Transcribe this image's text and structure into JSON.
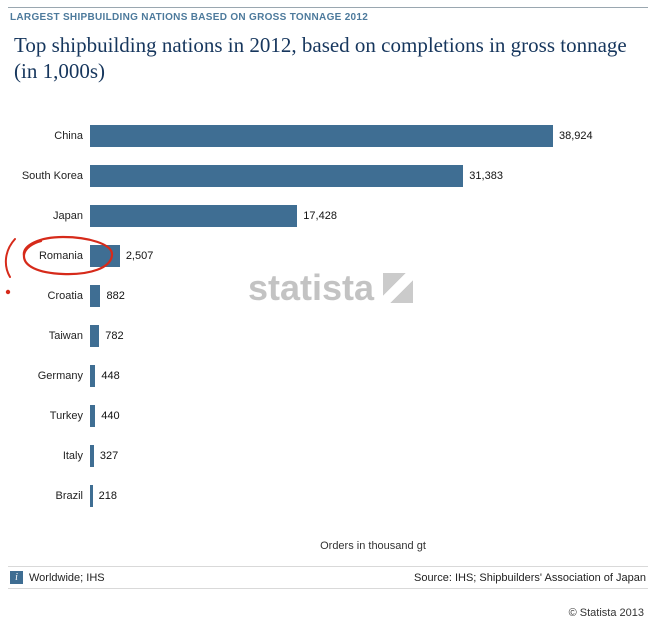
{
  "kicker": "LARGEST SHIPBUILDING NATIONS BASED ON GROSS TONNAGE 2012",
  "title": "Top shipbuilding nations in 2012, based on completions in gross tonnage (in 1,000s)",
  "watermark": {
    "text": "statista"
  },
  "chart_data": {
    "type": "bar",
    "orientation": "horizontal",
    "title": "Top shipbuilding nations in 2012, based on completions in gross tonnage (in 1,000s)",
    "categories": [
      "China",
      "South Korea",
      "Japan",
      "Romania",
      "Croatia",
      "Taiwan",
      "Germany",
      "Turkey",
      "Italy",
      "Brazil"
    ],
    "values": [
      38924,
      31383,
      17428,
      2507,
      882,
      782,
      448,
      440,
      327,
      218
    ],
    "value_labels": [
      "38,924",
      "31,383",
      "17,428",
      "2,507",
      "882",
      "782",
      "448",
      "440",
      "327",
      "218"
    ],
    "xlabel": "Orders in thousand gt",
    "xlim": [
      0,
      40000
    ],
    "bar_color": "#3f6e93",
    "grid": false,
    "legend": "none",
    "annotations": [
      "hand-drawn red circle around the Romania label with small red pen marks at the left margin"
    ]
  },
  "footer": {
    "info_icon": "i",
    "left_text": "Worldwide; IHS",
    "source_text": "Source: IHS; Shipbuilders' Association of Japan",
    "copyright": "© Statista 2013"
  }
}
